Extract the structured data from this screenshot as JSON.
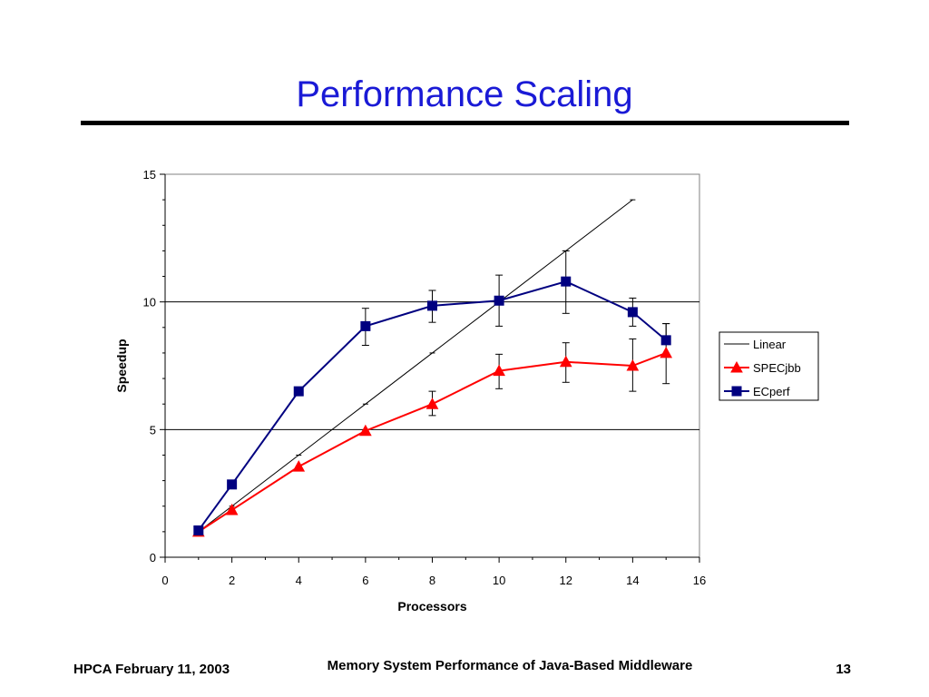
{
  "slide": {
    "title": "Performance Scaling",
    "footer_left": "HPCA February 11, 2003",
    "footer_center": "Memory System Performance of Java-Based Middleware",
    "page_number": "13"
  },
  "chart_data": {
    "type": "line",
    "title": "",
    "xlabel": "Processors",
    "ylabel": "Speedup",
    "xlim": [
      0,
      16
    ],
    "ylim": [
      0,
      15
    ],
    "xticks": [
      0,
      2,
      4,
      6,
      8,
      10,
      12,
      14,
      16
    ],
    "yticks": [
      0,
      5,
      10,
      15
    ],
    "grid": "horizontal major lines at 5 and 10",
    "legend_position": "right",
    "series": [
      {
        "name": "Linear",
        "color": "#000000",
        "marker": "none",
        "x": [
          1,
          2,
          4,
          6,
          8,
          10,
          12,
          14
        ],
        "y": [
          1,
          2,
          4,
          6,
          8,
          10,
          12,
          14
        ]
      },
      {
        "name": "SPECjbb",
        "color": "#ff0000",
        "marker": "triangle",
        "x": [
          1,
          2,
          4,
          6,
          8,
          10,
          12,
          14,
          15
        ],
        "y": [
          1.0,
          1.85,
          3.55,
          4.95,
          6.0,
          7.3,
          7.65,
          7.5,
          8.0
        ],
        "err_low": [
          null,
          null,
          null,
          null,
          5.55,
          6.6,
          6.85,
          6.5,
          6.8
        ],
        "err_high": [
          null,
          null,
          null,
          null,
          6.5,
          7.95,
          8.4,
          8.55,
          9.15
        ]
      },
      {
        "name": "ECperf",
        "color": "#000080",
        "marker": "square",
        "x": [
          1,
          2,
          4,
          6,
          8,
          10,
          12,
          14,
          15
        ],
        "y": [
          1.05,
          2.85,
          6.5,
          9.05,
          9.85,
          10.05,
          10.8,
          9.6,
          8.5
        ],
        "err_low": [
          null,
          null,
          null,
          8.3,
          9.2,
          9.05,
          9.55,
          9.05,
          8.5
        ],
        "err_high": [
          null,
          null,
          null,
          9.75,
          10.45,
          11.05,
          12.0,
          10.15,
          9.15
        ]
      }
    ]
  }
}
